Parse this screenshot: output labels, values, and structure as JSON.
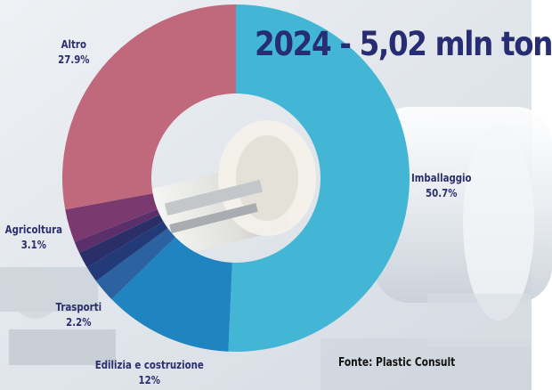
{
  "title": "2024 -  5,02 mln ton",
  "source": "Fonte: Plastic Consult",
  "chart_data": {
    "type": "pie",
    "categories": [
      "Imballaggio",
      "Edilizia e costruzione",
      "Trasporti",
      "Agricoltura",
      "Altro"
    ],
    "values": [
      50.7,
      12,
      2.2,
      3.1,
      27.9
    ],
    "value_labels": [
      "50.7%",
      "12%",
      "2.2%",
      "3.1%",
      "27.9%"
    ],
    "unlabeled_slices": [
      1.5,
      1.5,
      1.1
    ],
    "slice_colors": {
      "Imballaggio": "#43b6d6",
      "Edilizia e costruzione": "#1f84bf",
      "Trasporti": "#2b62a0",
      "Agricoltura": "#7a3a6f",
      "Altro": "#c0697c",
      "unlabeled": [
        "#233a78",
        "#2a2f6a",
        "#5a2f6a"
      ]
    },
    "donut": true,
    "title": "2024 -  5,02 mln ton",
    "legend": "none"
  }
}
